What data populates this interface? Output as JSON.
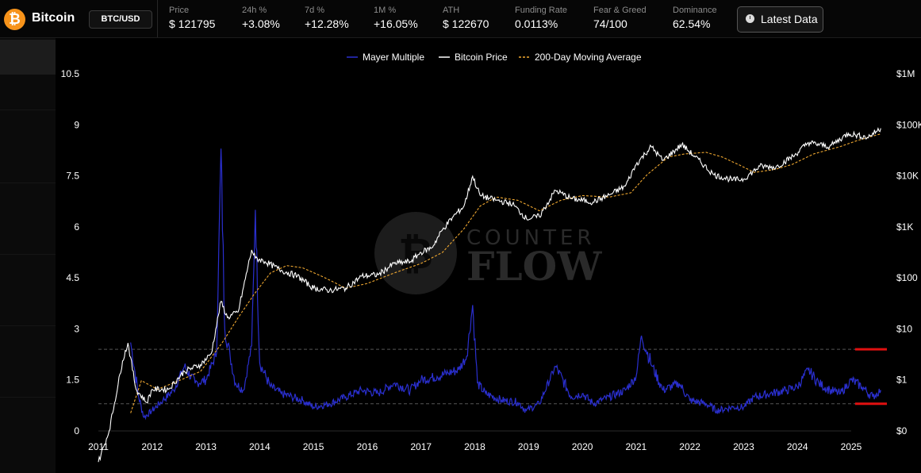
{
  "header": {
    "coin_symbol": "₿",
    "coin_name": "Bitcoin",
    "pair": "BTC/USD",
    "stats": [
      {
        "label": "Price",
        "value": "$ 121795"
      },
      {
        "label": "24h %",
        "value": "+3.08%"
      },
      {
        "label": "7d %",
        "value": "+12.28%"
      },
      {
        "label": "1M %",
        "value": "+16.05%"
      },
      {
        "label": "ATH",
        "value": "$ 122670"
      },
      {
        "label": "Funding Rate",
        "value": "0.0113%"
      },
      {
        "label": "Fear & Greed",
        "value": "74/100"
      },
      {
        "label": "Dominance",
        "value": "62.54%"
      }
    ],
    "latest_button": "Latest Data"
  },
  "watermark": {
    "line1": "COUNTER",
    "line2": "FLOW"
  },
  "chart_data": {
    "type": "line",
    "legend": [
      "Mayer Multiple",
      "Bitcoin Price",
      "200-Day Moving Average"
    ],
    "legend_placement": "top-center",
    "colors": {
      "mayer": "#2a2fcf",
      "price": "#ffffff",
      "ma": "#f0a830",
      "threshold": "#e01010",
      "background": "#000000"
    },
    "x_ticks": [
      "2011",
      "2012",
      "2013",
      "2014",
      "2015",
      "2016",
      "2017",
      "2018",
      "2019",
      "2020",
      "2021",
      "2022",
      "2023",
      "2024",
      "2025"
    ],
    "y_left": {
      "min": 0,
      "max": 10.5,
      "ticks": [
        "0",
        "1.5",
        "3",
        "4.5",
        "6",
        "7.5",
        "9",
        "10.5"
      ]
    },
    "y_right": {
      "scale": "log",
      "min": 1,
      "max": 1000000,
      "ticks": [
        "$0",
        "$1",
        "$10",
        "$100",
        "$1K",
        "$10K",
        "$100K",
        "$1M"
      ]
    },
    "reference_lines": [
      2.4,
      0.8
    ],
    "price_series": {
      "name": "Bitcoin Price",
      "x": [
        2011.0,
        2011.2,
        2011.45,
        2011.55,
        2011.7,
        2011.9,
        2012.0,
        2012.3,
        2012.6,
        2012.9,
        2013.1,
        2013.28,
        2013.4,
        2013.6,
        2013.85,
        2013.92,
        2014.1,
        2014.4,
        2014.7,
        2015.0,
        2015.3,
        2015.6,
        2015.9,
        2016.2,
        2016.5,
        2016.8,
        2017.0,
        2017.2,
        2017.4,
        2017.6,
        2017.8,
        2017.96,
        2018.1,
        2018.4,
        2018.7,
        2018.96,
        2019.2,
        2019.5,
        2019.8,
        2020.2,
        2020.5,
        2020.8,
        2021.0,
        2021.28,
        2021.5,
        2021.85,
        2022.1,
        2022.45,
        2022.8,
        2023.0,
        2023.3,
        2023.6,
        2023.95,
        2024.2,
        2024.6,
        2024.95,
        2025.3,
        2025.55
      ],
      "y": [
        0.3,
        1,
        15,
        30,
        5,
        3,
        5,
        5,
        10,
        13,
        20,
        150,
        80,
        100,
        1100,
        800,
        700,
        500,
        400,
        250,
        230,
        250,
        400,
        420,
        650,
        700,
        1000,
        1200,
        2400,
        4000,
        6000,
        19000,
        9000,
        7500,
        6500,
        3700,
        4000,
        11000,
        8000,
        7000,
        9200,
        13000,
        30000,
        60000,
        35000,
        65000,
        40000,
        20000,
        16500,
        17000,
        28000,
        27000,
        43000,
        70000,
        60000,
        100000,
        85000,
        121795
      ]
    },
    "ma_series": {
      "name": "200-Day Moving Average",
      "x": [
        2011.6,
        2011.8,
        2012.1,
        2012.5,
        2012.9,
        2013.3,
        2013.6,
        2013.9,
        2014.2,
        2014.5,
        2014.8,
        2015.2,
        2015.6,
        2016.0,
        2016.5,
        2017.0,
        2017.4,
        2017.8,
        2018.1,
        2018.4,
        2018.8,
        2019.2,
        2019.6,
        2020.0,
        2020.5,
        2020.9,
        2021.2,
        2021.6,
        2021.9,
        2022.3,
        2022.6,
        2022.9,
        2023.2,
        2023.6,
        2023.9,
        2024.3,
        2024.8,
        2025.1,
        2025.55
      ],
      "y": [
        2,
        7,
        5,
        7,
        10,
        30,
        80,
        200,
        450,
        600,
        550,
        380,
        250,
        300,
        450,
        650,
        1000,
        2500,
        6000,
        8500,
        7500,
        5000,
        7500,
        9000,
        8500,
        10000,
        20000,
        40000,
        45000,
        48000,
        40000,
        30000,
        22000,
        25000,
        30000,
        45000,
        60000,
        75000,
        98000
      ]
    },
    "mayer_series": {
      "name": "Mayer Multiple",
      "x": [
        2011.6,
        2011.75,
        2011.85,
        2012.0,
        2012.2,
        2012.4,
        2012.6,
        2012.8,
        2013.0,
        2013.2,
        2013.28,
        2013.35,
        2013.45,
        2013.55,
        2013.7,
        2013.85,
        2013.92,
        2014.0,
        2014.2,
        2014.4,
        2014.6,
        2014.8,
        2015.0,
        2015.3,
        2015.6,
        2015.9,
        2016.2,
        2016.5,
        2016.8,
        2017.0,
        2017.3,
        2017.5,
        2017.7,
        2017.85,
        2017.96,
        2018.05,
        2018.2,
        2018.5,
        2018.8,
        2018.96,
        2019.2,
        2019.5,
        2019.8,
        2020.0,
        2020.2,
        2020.5,
        2020.8,
        2021.0,
        2021.1,
        2021.3,
        2021.5,
        2021.8,
        2022.0,
        2022.3,
        2022.5,
        2022.8,
        2023.0,
        2023.2,
        2023.5,
        2023.8,
        2024.0,
        2024.2,
        2024.4,
        2024.6,
        2024.8,
        2025.0,
        2025.2,
        2025.4,
        2025.55
      ],
      "y": [
        2.6,
        1.0,
        0.4,
        0.6,
        0.9,
        1.2,
        1.9,
        1.4,
        1.5,
        2.3,
        8.3,
        3.0,
        2.2,
        1.4,
        1.2,
        2.5,
        6.5,
        2.0,
        1.3,
        1.1,
        1.0,
        0.9,
        0.7,
        0.8,
        1.0,
        1.2,
        1.1,
        1.4,
        1.2,
        1.5,
        1.6,
        1.7,
        1.8,
        2.2,
        3.7,
        1.4,
        1.1,
        0.9,
        0.85,
        0.6,
        0.8,
        1.9,
        1.0,
        1.1,
        0.8,
        1.0,
        1.2,
        1.6,
        2.8,
        1.9,
        1.2,
        1.4,
        0.9,
        0.8,
        0.6,
        0.7,
        0.7,
        1.0,
        1.1,
        1.2,
        1.3,
        1.8,
        1.4,
        1.2,
        1.1,
        1.5,
        1.3,
        1.0,
        1.2
      ]
    }
  }
}
